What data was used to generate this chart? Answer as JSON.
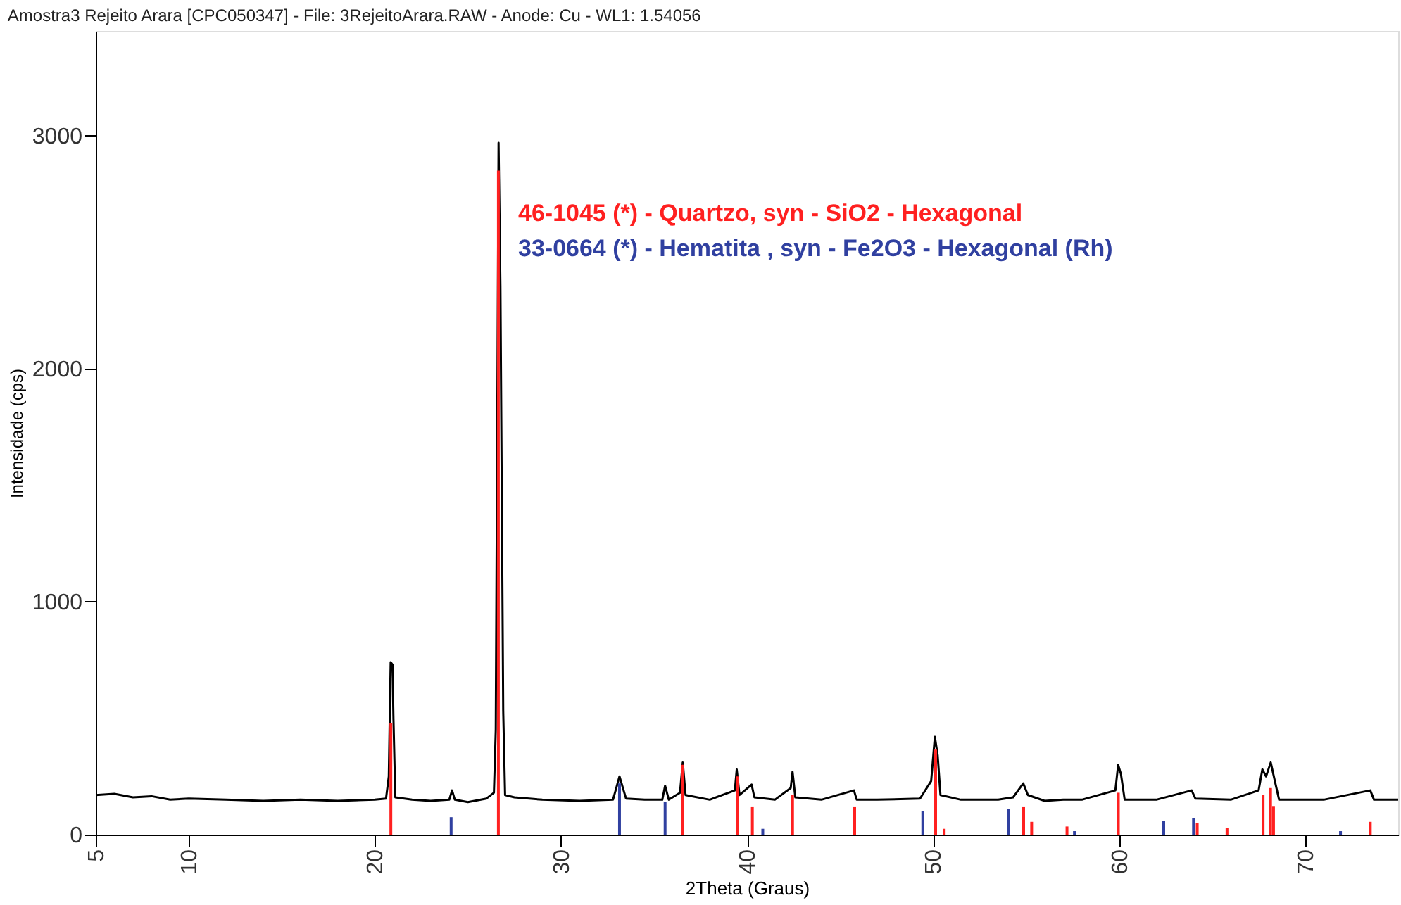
{
  "chart_data": {
    "type": "line",
    "title": "Amostra3 Rejeito Arara [CPC050347] - File: 3RejeitoArara.RAW - Anode: Cu - WL1: 1.54056",
    "xlabel": "2Theta (Graus)",
    "ylabel": "Intensidade (cps)",
    "xlim": [
      5,
      75
    ],
    "ylim": [
      0,
      3450
    ],
    "xticks": [
      5,
      10,
      20,
      30,
      40,
      50,
      60,
      70
    ],
    "yticks": [
      0,
      1000,
      2000,
      3000
    ],
    "grid": false,
    "legend": false,
    "marker": "none",
    "line_style": "solid",
    "series": [
      {
        "color": "#000000",
        "x": [
          5,
          6,
          7,
          8,
          9,
          10,
          12,
          14,
          16,
          18,
          20,
          20.6,
          20.75,
          20.85,
          20.95,
          21.0,
          21.1,
          22,
          23,
          24.0,
          24.15,
          24.3,
          25,
          26,
          26.4,
          26.5,
          26.6,
          26.65,
          26.75,
          26.9,
          27.0,
          27.5,
          29,
          31,
          32.8,
          33.15,
          33.5,
          34.5,
          35.45,
          35.6,
          35.8,
          36.4,
          36.55,
          36.7,
          38,
          39.35,
          39.45,
          39.6,
          40.25,
          40.4,
          41.5,
          42.35,
          42.45,
          42.6,
          44,
          45.75,
          45.9,
          47,
          49.3,
          49.9,
          50.1,
          50.25,
          50.4,
          51.5,
          53.5,
          54.3,
          54.85,
          55.1,
          56,
          57,
          58,
          59.8,
          59.95,
          60.1,
          60.3,
          62,
          63.9,
          64.1,
          66,
          67.5,
          67.7,
          67.9,
          68.15,
          68.4,
          68.6,
          70,
          71,
          73.5,
          73.7,
          75
        ],
        "values": [
          170,
          175,
          160,
          165,
          150,
          155,
          150,
          145,
          150,
          145,
          150,
          155,
          250,
          740,
          730,
          500,
          160,
          150,
          145,
          150,
          190,
          150,
          140,
          155,
          180,
          450,
          2100,
          2970,
          2350,
          530,
          170,
          160,
          150,
          145,
          150,
          250,
          155,
          150,
          150,
          210,
          150,
          180,
          310,
          170,
          150,
          190,
          280,
          170,
          215,
          160,
          150,
          200,
          270,
          160,
          150,
          190,
          150,
          150,
          155,
          230,
          420,
          340,
          170,
          150,
          150,
          160,
          220,
          170,
          145,
          150,
          150,
          190,
          300,
          260,
          150,
          150,
          190,
          155,
          150,
          190,
          280,
          250,
          310,
          220,
          150,
          150,
          150,
          190,
          150,
          150
        ]
      },
      {
        "type": "bar",
        "name": "46-1045 (*) - Quartzo, syn - SiO2 - Hexagonal",
        "color": "#ff2020",
        "x": [
          20.86,
          26.64,
          36.54,
          39.47,
          40.29,
          42.45,
          45.79,
          50.14,
          50.6,
          54.87,
          55.3,
          57.2,
          59.96,
          64.2,
          65.8,
          67.74,
          68.14,
          68.3,
          73.5
        ],
        "values": [
          480,
          2850,
          300,
          250,
          118,
          170,
          118,
          365,
          25,
          118,
          55,
          35,
          180,
          50,
          30,
          170,
          200,
          120,
          55
        ]
      },
      {
        "type": "bar",
        "name": "33-0664 (*) - Hematita , syn - Fe2O3 - Hexagonal (Rh)",
        "color": "#3040a0",
        "x": [
          24.1,
          33.15,
          35.6,
          40.85,
          49.45,
          54.05,
          57.6,
          62.4,
          64.0,
          71.9
        ],
        "values": [
          75,
          220,
          140,
          25,
          100,
          110,
          15,
          60,
          70,
          15
        ]
      }
    ]
  }
}
